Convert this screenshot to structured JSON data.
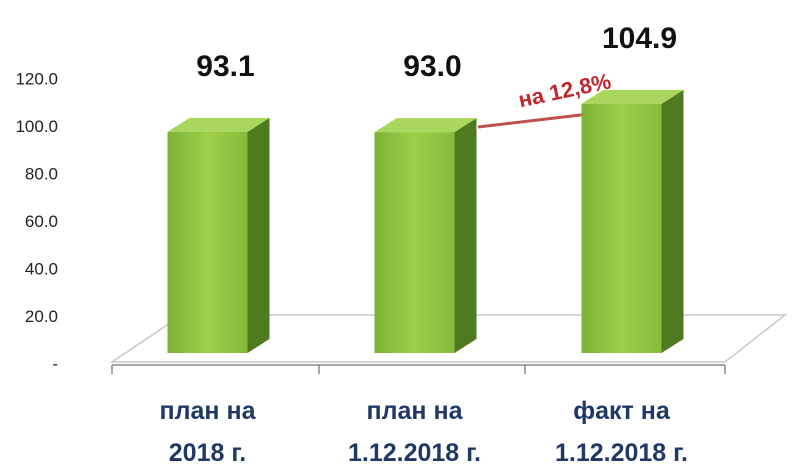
{
  "chart_data": {
    "type": "bar3d",
    "categories": [
      "план на\n2018 г.",
      "план на\n1.12.2018 г.",
      "факт на\n1.12.2018 г."
    ],
    "values": [
      93.1,
      93.0,
      104.9
    ],
    "value_labels": [
      "93.1",
      "93.0",
      "104.9"
    ],
    "color": "#8cc43e",
    "ylim": [
      0,
      120
    ],
    "yticks": [
      {
        "value": 0,
        "label": "-"
      },
      {
        "value": 20,
        "label": "20.0"
      },
      {
        "value": 40,
        "label": "40.0"
      },
      {
        "value": 60,
        "label": "60.0"
      },
      {
        "value": 80,
        "label": "80.0"
      },
      {
        "value": 100,
        "label": "100.0"
      },
      {
        "value": 120,
        "label": "120.0"
      }
    ],
    "annotation": "на 12,8%"
  }
}
